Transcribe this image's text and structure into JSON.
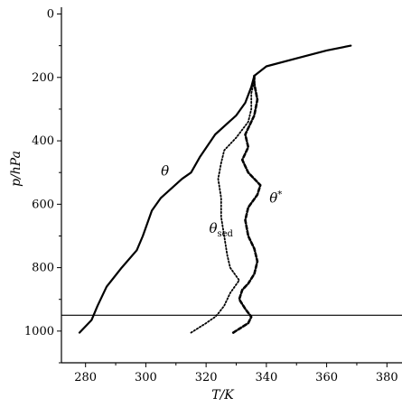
{
  "chart_data": {
    "type": "line",
    "xlabel": "T/K",
    "ylabel": "p/hPa",
    "xlim": [
      272,
      385
    ],
    "ylim": [
      1100,
      -10
    ],
    "y_inverted": true,
    "grid": false,
    "x_ticks": [
      280,
      300,
      320,
      340,
      360,
      380
    ],
    "y_ticks": [
      0,
      200,
      400,
      600,
      800,
      1000
    ],
    "reference_line": {
      "p": 950
    },
    "series": [
      {
        "name": "θ",
        "style": "solid",
        "label_at": {
          "T": 305,
          "p": 510
        },
        "points": [
          [
            278,
            1005
          ],
          [
            282,
            965
          ],
          [
            284,
            920
          ],
          [
            287,
            860
          ],
          [
            292,
            800
          ],
          [
            297,
            745
          ],
          [
            299,
            700
          ],
          [
            302,
            620
          ],
          [
            305,
            580
          ],
          [
            312,
            520
          ],
          [
            315,
            500
          ],
          [
            318,
            450
          ],
          [
            323,
            380
          ],
          [
            330,
            320
          ],
          [
            333,
            280
          ],
          [
            335,
            230
          ],
          [
            336,
            195
          ],
          [
            338,
            180
          ],
          [
            340,
            165
          ],
          [
            350,
            140
          ],
          [
            360,
            115
          ],
          [
            368,
            100
          ]
        ]
      },
      {
        "name": "θsed",
        "style": "dotted",
        "label_at": {
          "T": 321,
          "p": 690
        },
        "points": [
          [
            315,
            1005
          ],
          [
            320,
            975
          ],
          [
            323,
            955
          ],
          [
            324,
            945
          ],
          [
            326,
            920
          ],
          [
            328,
            880
          ],
          [
            331,
            840
          ],
          [
            328,
            800
          ],
          [
            327,
            760
          ],
          [
            326,
            700
          ],
          [
            325,
            640
          ],
          [
            325,
            580
          ],
          [
            324,
            520
          ],
          [
            325,
            470
          ],
          [
            326,
            430
          ],
          [
            330,
            390
          ],
          [
            334,
            340
          ],
          [
            335,
            300
          ],
          [
            335,
            250
          ],
          [
            336,
            210
          ],
          [
            336,
            195
          ]
        ]
      },
      {
        "name": "θ*",
        "style": "dashed",
        "label_at": {
          "T": 341,
          "p": 595
        },
        "points": [
          [
            329,
            1005
          ],
          [
            334,
            975
          ],
          [
            335,
            955
          ],
          [
            333,
            930
          ],
          [
            331,
            900
          ],
          [
            332,
            870
          ],
          [
            334,
            850
          ],
          [
            336,
            820
          ],
          [
            337,
            780
          ],
          [
            336,
            740
          ],
          [
            334,
            700
          ],
          [
            333,
            650
          ],
          [
            334,
            610
          ],
          [
            337,
            570
          ],
          [
            338,
            540
          ],
          [
            334,
            500
          ],
          [
            332,
            460
          ],
          [
            334,
            420
          ],
          [
            333,
            380
          ],
          [
            336,
            320
          ],
          [
            337,
            270
          ],
          [
            336,
            220
          ],
          [
            336,
            195
          ]
        ]
      }
    ]
  }
}
